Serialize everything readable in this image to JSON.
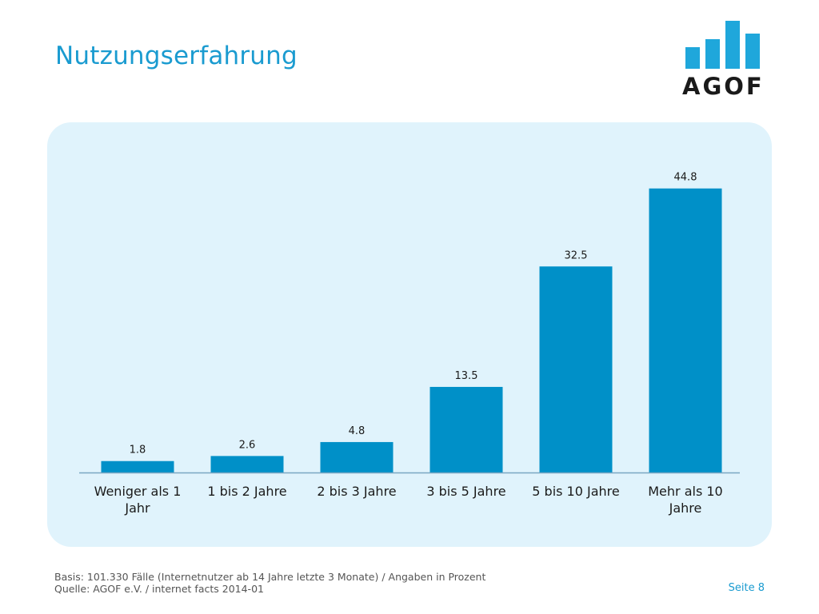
{
  "header": {
    "title": "Nutzungserfahrung",
    "logo_text": "AGOF"
  },
  "chart_data": {
    "type": "bar",
    "categories": [
      "Weniger als 1 Jahr",
      "1 bis 2 Jahre",
      "2 bis 3 Jahre",
      "3 bis 5 Jahre",
      "5 bis 10 Jahre",
      "Mehr als 10 Jahre"
    ],
    "values": [
      1.8,
      2.6,
      4.8,
      13.5,
      32.5,
      44.8
    ],
    "data_labels": [
      "1.8",
      "2.6",
      "4.8",
      "13.5",
      "32.5",
      "44.8"
    ],
    "title": "",
    "xlabel": "",
    "ylabel": "",
    "ylim": [
      0,
      50
    ],
    "grid": false,
    "bar_color": "#0090c8",
    "baseline_color": "#7aa6c2"
  },
  "footer": {
    "line1": "Basis: 101.330 Fälle (Internetnutzer ab 14 Jahre letzte 3 Monate) / Angaben in Prozent",
    "line2": "Quelle: AGOF e.V. / internet facts 2014-01",
    "page": "Seite 8"
  },
  "colors": {
    "accent": "#1a9bd0",
    "panel_bg": "#e0f3fc"
  }
}
